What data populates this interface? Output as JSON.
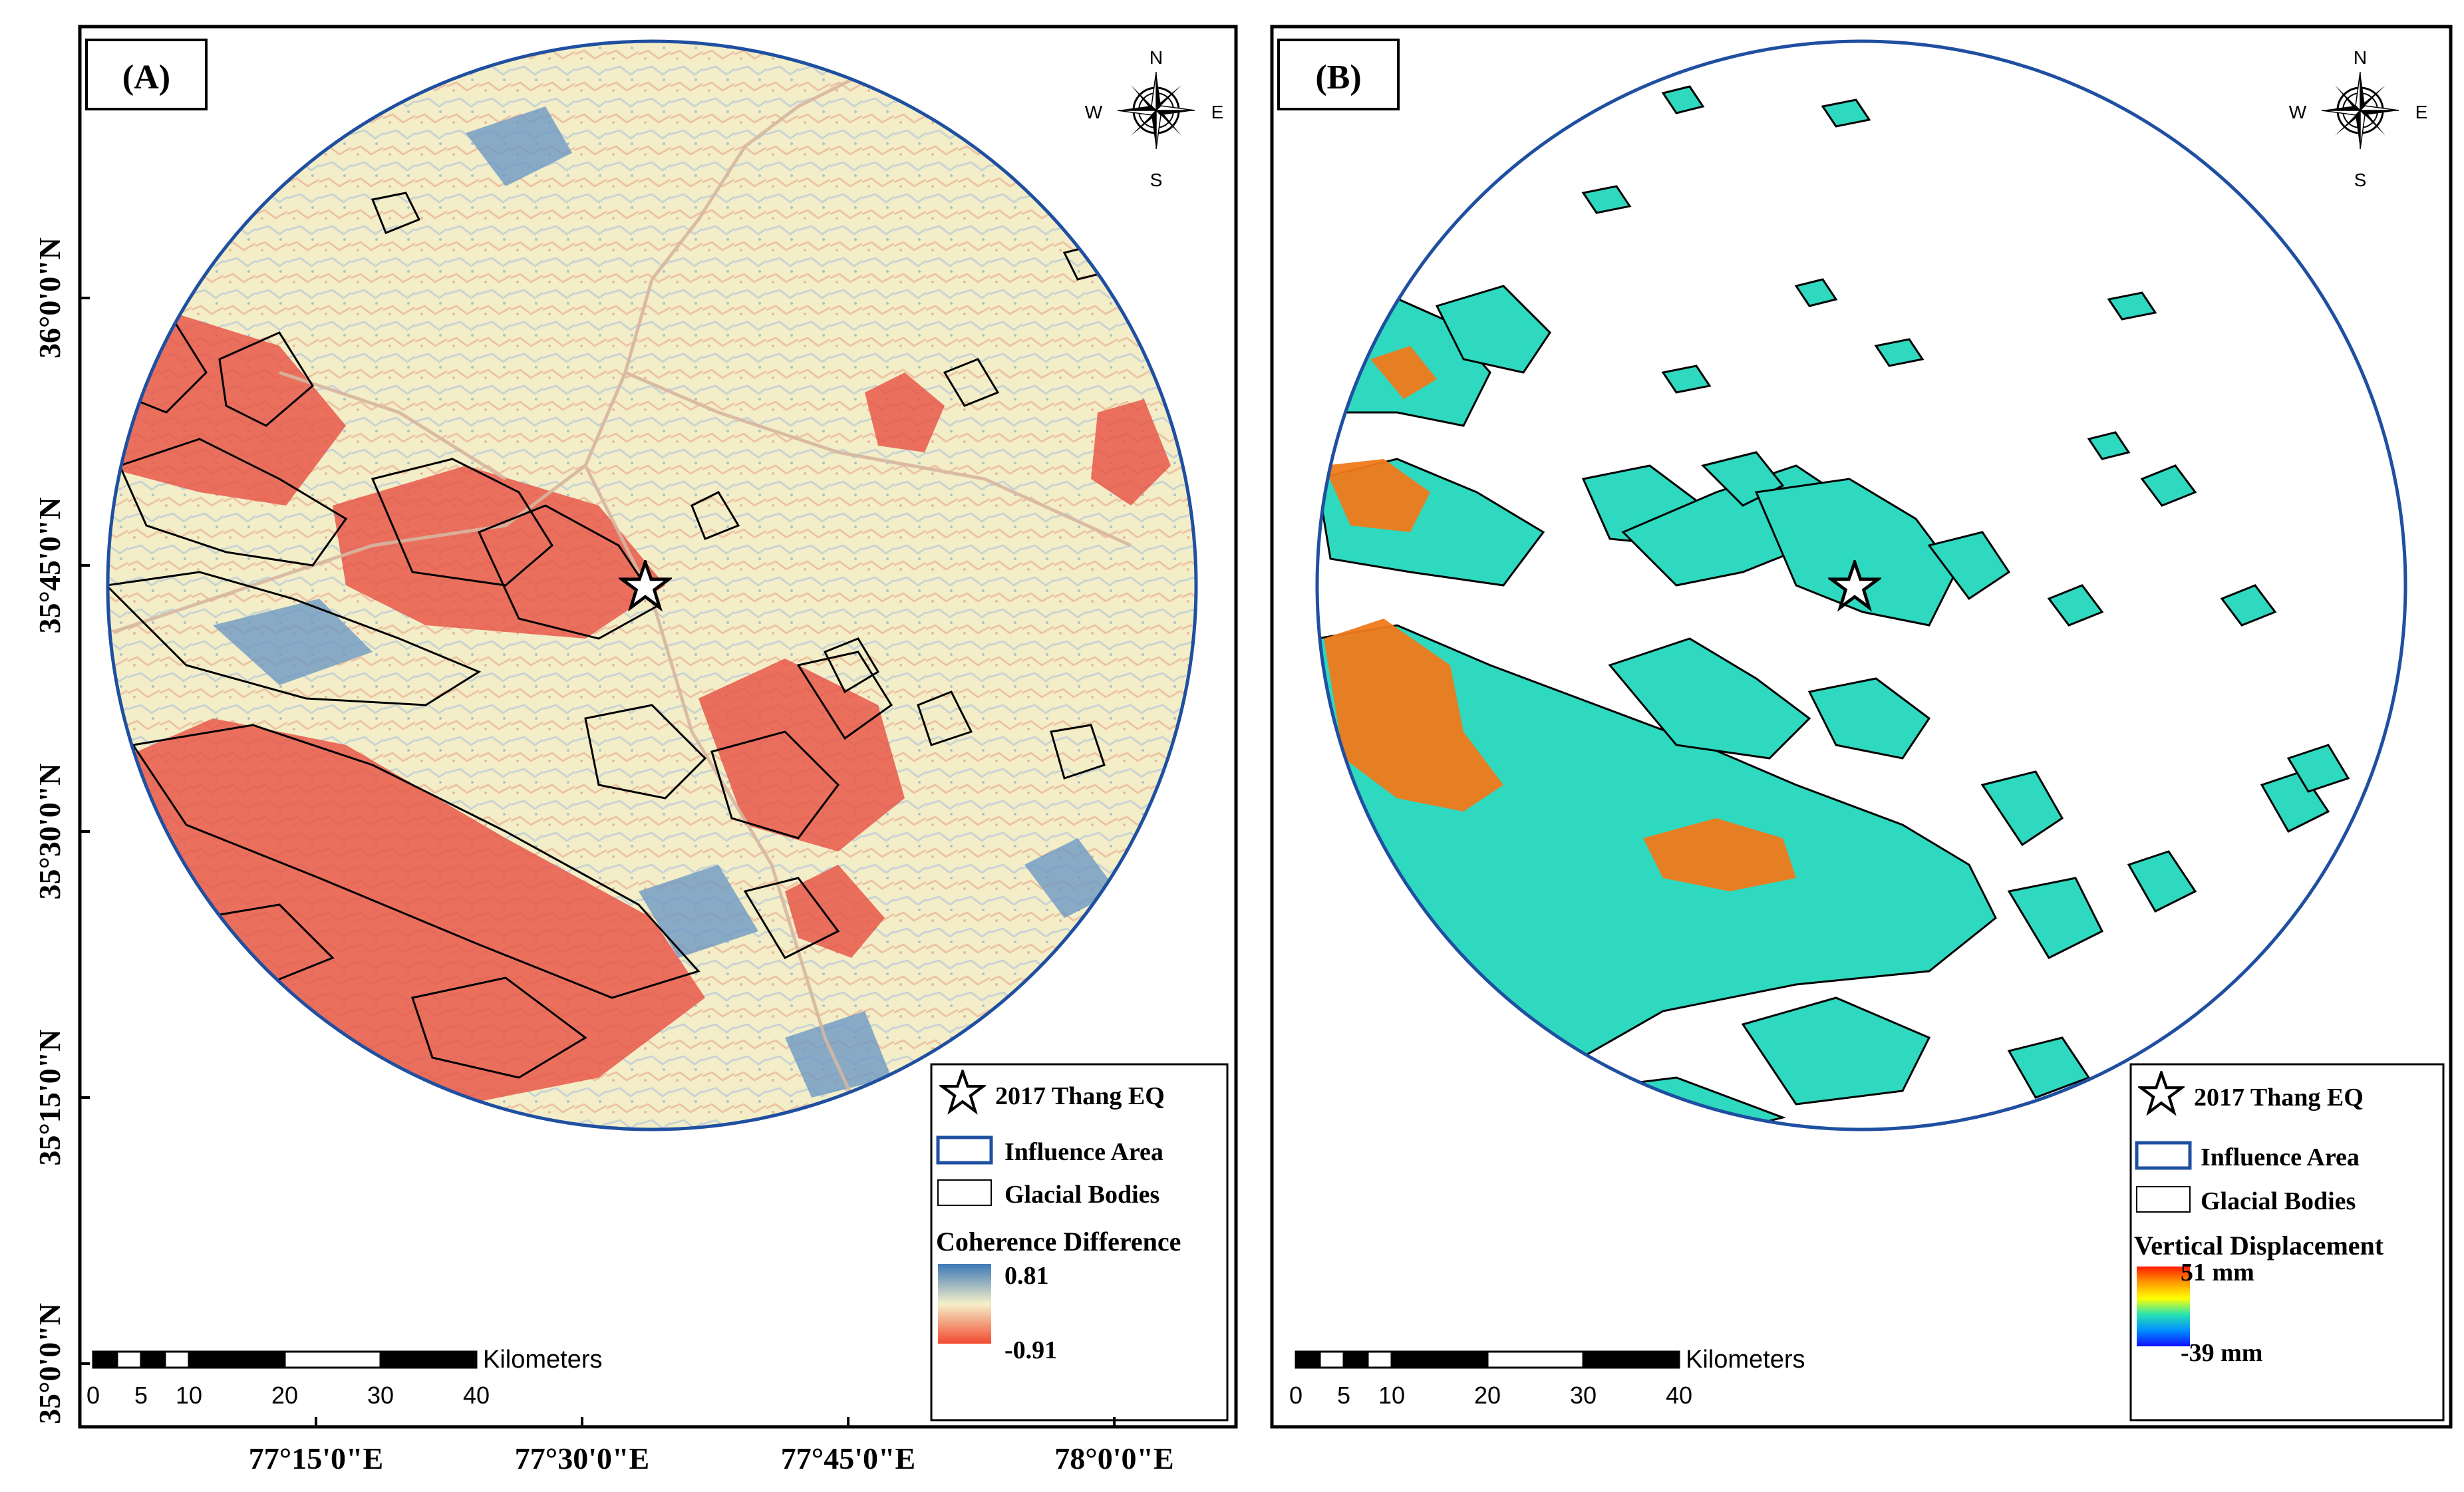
{
  "panels": [
    {
      "label": "(A)",
      "compass": {
        "n": "N",
        "s": "S",
        "e": "E",
        "w": "W"
      },
      "legend": {
        "epicenter": "2017 Thang EQ",
        "influence_area": "Influence Area",
        "glacial_bodies": "Glacial Bodies",
        "ramp_title": "Coherence Difference",
        "ramp_max": "0.81",
        "ramp_min": "-0.91",
        "ramp_colors": [
          "#3d78b8",
          "#f4f0c8",
          "#f24a30"
        ]
      },
      "scalebar": {
        "unit": "Kilometers",
        "ticks": [
          "0",
          "5",
          "10",
          "20",
          "30",
          "40"
        ]
      }
    },
    {
      "label": "(B)",
      "compass": {
        "n": "N",
        "s": "S",
        "e": "E",
        "w": "W"
      },
      "legend": {
        "epicenter": "2017 Thang EQ",
        "influence_area": "Influence Area",
        "glacial_bodies": "Glacial Bodies",
        "ramp_title": "Vertical Displacement",
        "ramp_max": "51 mm",
        "ramp_min": "-39 mm",
        "ramp_colors": [
          "#ff1a00",
          "#ff9a00",
          "#ffff00",
          "#29e3b0",
          "#0090ff",
          "#1010ff"
        ]
      },
      "scalebar": {
        "unit": "Kilometers",
        "ticks": [
          "0",
          "5",
          "10",
          "20",
          "30",
          "40"
        ]
      }
    }
  ],
  "axes": {
    "latitude_labels": [
      "36°0'0\"N",
      "35°45'0\"N",
      "35°30'0\"N",
      "35°15'0\"N",
      "35°0'0\"N"
    ],
    "longitude_labels": [
      "77°15'0\"E",
      "77°30'0\"E",
      "77°45'0\"E",
      "78°0'0\"E"
    ]
  },
  "colors": {
    "influence_area": "#1f4fa0",
    "glacier_outline": "#000000",
    "terrain_base": "#f3eec8",
    "coherence_loss": "#e8584a",
    "coherence_gain": "#6d98c4",
    "displacement_base": "#2ed9c0",
    "displacement_uplift": "#f07a1a"
  }
}
